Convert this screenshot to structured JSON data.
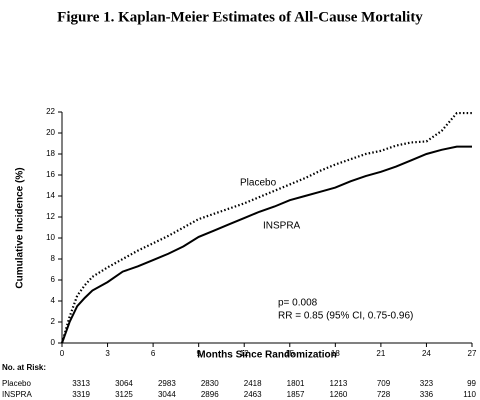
{
  "chart_data": {
    "type": "line",
    "title": "Figure 1.  Kaplan-Meier Estimates of All-Cause Mortality",
    "x_label": "Months Since Randomization",
    "y_label": "Cumulative Incidence (%)",
    "x": [
      0,
      0.5,
      1,
      1.5,
      2,
      3,
      4,
      5,
      6,
      7,
      8,
      9,
      10,
      11,
      12,
      13,
      14,
      15,
      16,
      17,
      18,
      19,
      20,
      21,
      22,
      23,
      24,
      25,
      26,
      27
    ],
    "series": [
      {
        "name": "Placebo",
        "color": "#000000",
        "style": "dotted",
        "values": [
          0,
          2.5,
          4.5,
          5.5,
          6.3,
          7.2,
          8,
          8.8,
          9.5,
          10.2,
          11,
          11.8,
          12.3,
          12.8,
          13.3,
          13.9,
          14.5,
          15.1,
          15.7,
          16.4,
          17,
          17.5,
          18,
          18.3,
          18.8,
          19.1,
          19.2,
          20.2,
          21.9,
          21.9
        ]
      },
      {
        "name": "INSPRA",
        "color": "#000000",
        "style": "solid",
        "values": [
          0,
          2,
          3.5,
          4.3,
          5,
          5.8,
          6.8,
          7.3,
          7.9,
          8.5,
          9.2,
          10.1,
          10.7,
          11.3,
          11.9,
          12.5,
          13,
          13.6,
          14,
          14.4,
          14.8,
          15.4,
          15.9,
          16.3,
          16.8,
          17.4,
          18,
          18.4,
          18.7,
          18.7
        ]
      }
    ],
    "xlim": [
      0,
      27
    ],
    "xticks": [
      0,
      3,
      6,
      9,
      12,
      15,
      18,
      21,
      24,
      27
    ],
    "ylim": [
      0,
      22
    ],
    "yticks": [
      0,
      2,
      4,
      6,
      8,
      10,
      12,
      14,
      16,
      18,
      20,
      22
    ],
    "annotations": [
      "p= 0.008",
      "RR = 0.85 (95% CI, 0.75-0.96)"
    ],
    "at_risk": {
      "title": "No. at Risk:",
      "rows": [
        {
          "name": "Placebo",
          "values": [
            3313,
            3064,
            2983,
            2830,
            2418,
            1801,
            1213,
            709,
            323,
            99
          ]
        },
        {
          "name": "INSPRA",
          "values": [
            3319,
            3125,
            3044,
            2896,
            2463,
            1857,
            1260,
            728,
            336,
            110
          ]
        }
      ]
    }
  }
}
